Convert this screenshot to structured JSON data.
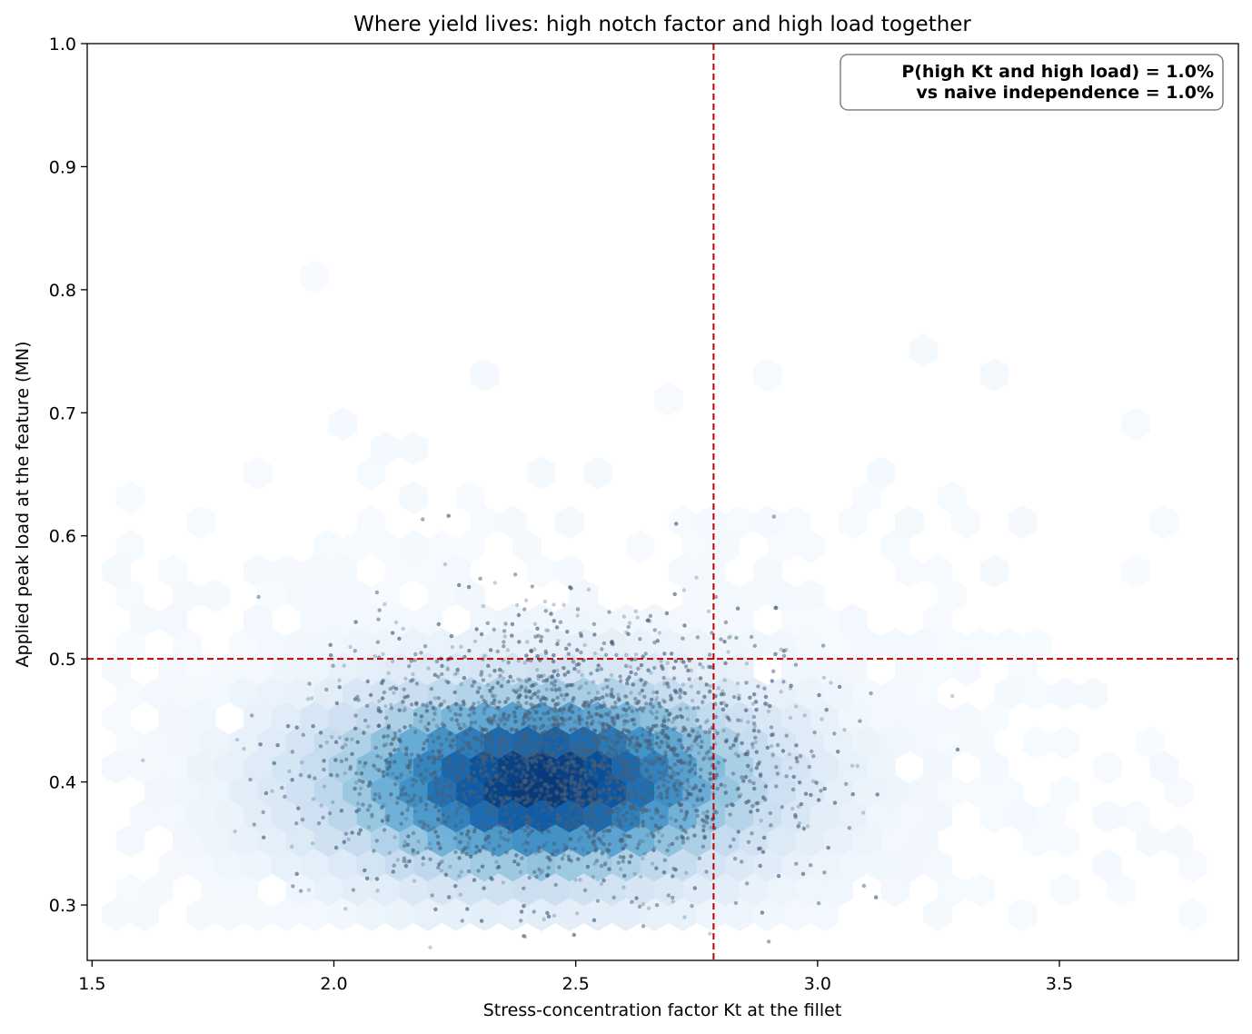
{
  "chart_data": {
    "type": "scatter",
    "title": "Where yield lives: high notch factor and high load together",
    "xlabel": "Stress-concentration factor Kt at the fillet",
    "ylabel": "Applied peak load at the feature  (MN)",
    "xlim": [
      1.49,
      3.87
    ],
    "ylim": [
      0.255,
      1.0
    ],
    "x_ticks": [
      1.5,
      2.0,
      2.5,
      3.0,
      3.5
    ],
    "x_tick_labels": [
      "1.5",
      "2.0",
      "2.5",
      "3.0",
      "3.5"
    ],
    "y_ticks": [
      0.3,
      0.4,
      0.5,
      0.6,
      0.7,
      0.8,
      0.9,
      1.0
    ],
    "y_tick_labels": [
      "0.3",
      "0.4",
      "0.5",
      "0.6",
      "0.7",
      "0.8",
      "0.9",
      "1.0"
    ],
    "grid": false,
    "legend": "none",
    "density": {
      "style": "hexbin",
      "colormap": "Blues",
      "peak_center": [
        2.43,
        0.4
      ],
      "spread_kt": 0.28,
      "spread_load": 0.05,
      "kt_range": [
        1.55,
        3.78
      ],
      "load_range": [
        0.28,
        0.97
      ]
    },
    "samples": {
      "center": [
        2.47,
        0.41
      ],
      "sd": [
        0.23,
        0.048
      ],
      "count": 5500,
      "color": "#4a5f7a",
      "alpha": 0.3
    },
    "thresholds": [
      {
        "axis": "x",
        "value": 2.785,
        "color": "#c00000",
        "style": "dashed"
      },
      {
        "axis": "y",
        "value": 0.5,
        "color": "#c00000",
        "style": "dashed"
      }
    ],
    "annotation": {
      "line1": "P(high Kt and high load) = 1.0%",
      "line2": "vs naive independence = 1.0%",
      "placement": "top-right"
    }
  }
}
